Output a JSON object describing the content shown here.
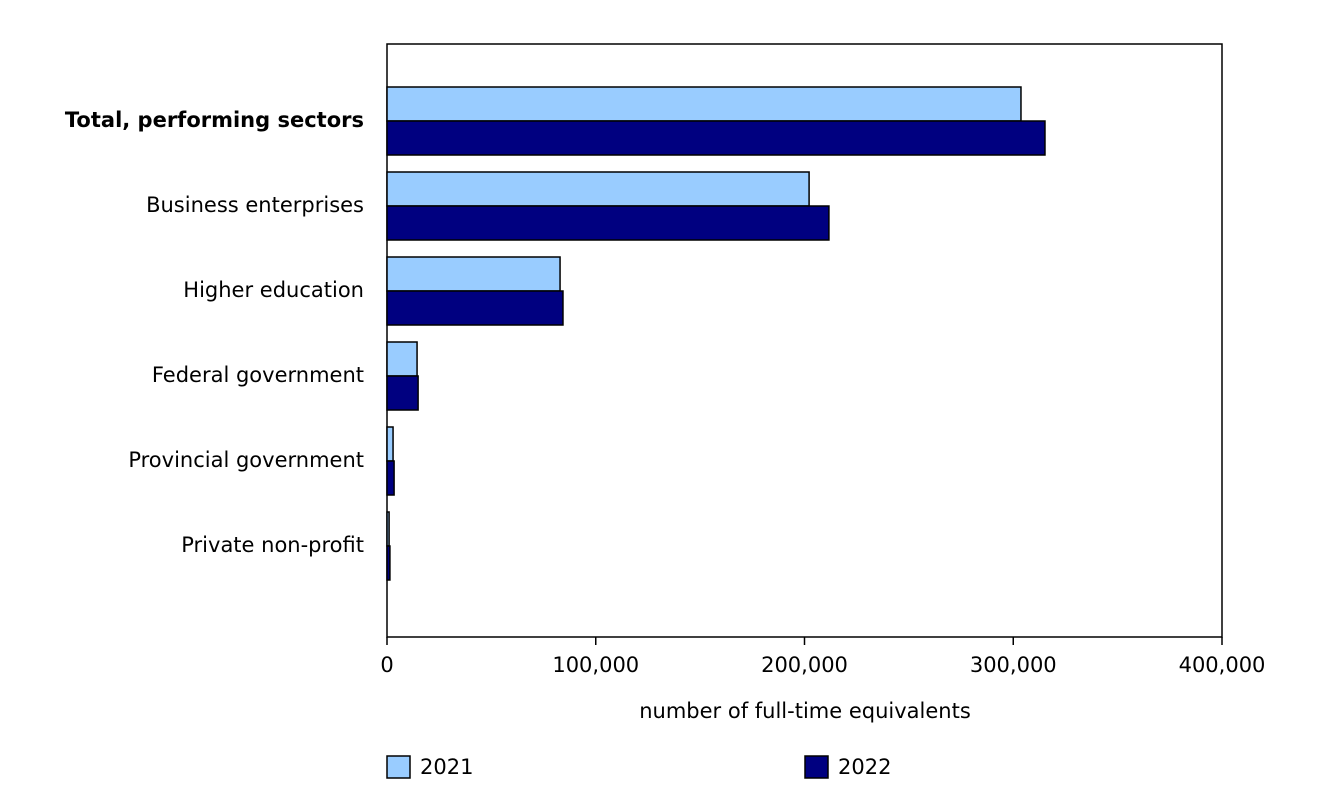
{
  "chart_data": {
    "type": "hbar",
    "categories": [
      "Total, performing sectors",
      "Business enterprises",
      "Higher education",
      "Federal government",
      "Provincial government",
      "Private non-profit"
    ],
    "series": [
      {
        "name": "2021",
        "color": "#99ccff",
        "values": [
          303700,
          202200,
          82900,
          14400,
          2900,
          1000
        ]
      },
      {
        "name": "2022",
        "color": "#000080",
        "values": [
          315200,
          211700,
          84300,
          14900,
          3400,
          1400
        ]
      }
    ],
    "xlabel": "number of full-time equivalents",
    "xlim": [
      0,
      400000
    ],
    "xticks": [
      0,
      {
        "value": 100000,
        "label": "100,000"
      },
      {
        "value": 200000,
        "label": "200,000"
      },
      {
        "value": 300000,
        "label": "300,000"
      },
      {
        "value": 400000,
        "label": "400,000"
      }
    ],
    "legend": "bottom"
  }
}
